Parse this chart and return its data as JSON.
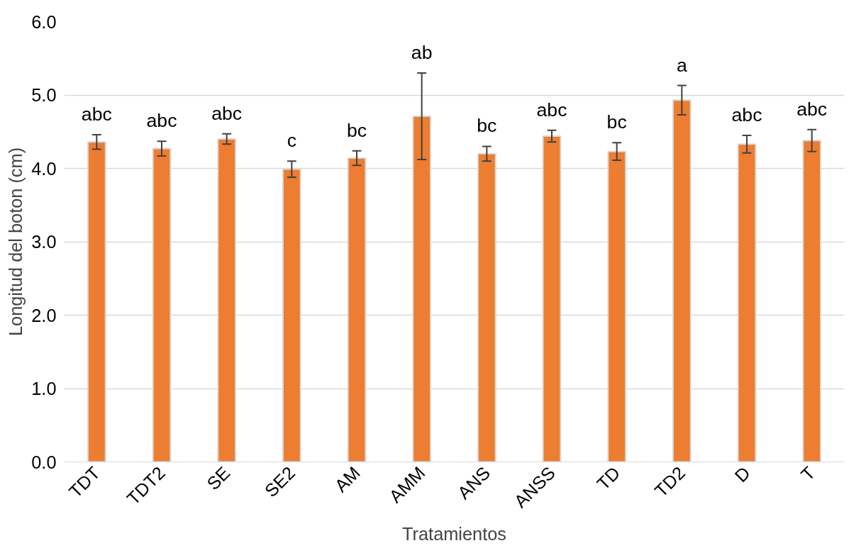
{
  "chart_data": {
    "type": "bar",
    "xlabel": "Tratamientos",
    "ylabel": "Longitud del boton (cm)",
    "categories": [
      "TDT",
      "TDT2",
      "SE",
      "SE2",
      "AM",
      "AMM",
      "ANS",
      "ANSS",
      "TD",
      "TD2",
      "D",
      "T"
    ],
    "values": [
      4.36,
      4.27,
      4.4,
      3.99,
      4.14,
      4.71,
      4.2,
      4.44,
      4.23,
      4.93,
      4.33,
      4.38
    ],
    "errors": [
      0.1,
      0.1,
      0.07,
      0.11,
      0.1,
      0.59,
      0.1,
      0.08,
      0.12,
      0.2,
      0.12,
      0.15
    ],
    "color": "#ed7d31",
    "ylim": [
      0,
      6
    ],
    "yticks": [
      {
        "value": 0,
        "label": "0.0"
      },
      {
        "value": 1,
        "label": "1.0"
      },
      {
        "value": 2,
        "label": "2.0"
      },
      {
        "value": 3,
        "label": "3.0"
      },
      {
        "value": 4,
        "label": "4.0"
      },
      {
        "value": 5,
        "label": "5.0"
      },
      {
        "value": 6,
        "label": "6.0"
      }
    ],
    "grid": "y",
    "annotations": [
      "abc",
      "abc",
      "abc",
      "c",
      "bc",
      "ab",
      "bc",
      "abc",
      "bc",
      "a",
      "abc",
      "abc"
    ]
  }
}
